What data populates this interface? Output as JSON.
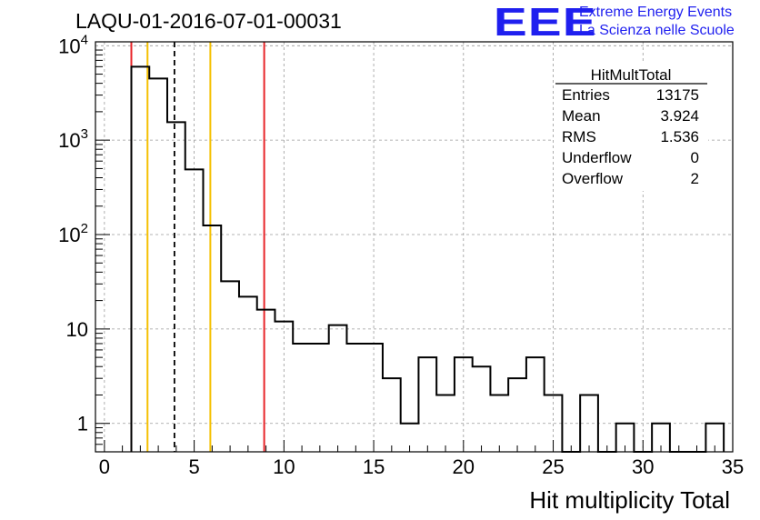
{
  "header": {
    "run_title": "LAQU-01-2016-07-01-00031",
    "logo_text": "EEE",
    "logo_line1": "Extreme Energy Events",
    "logo_line2": "La Scienza nelle Scuole"
  },
  "stats_box": {
    "title": "HitMultTotal",
    "rows": [
      {
        "label": "Entries",
        "value": "13175"
      },
      {
        "label": "Mean",
        "value": "3.924"
      },
      {
        "label": "RMS",
        "value": "1.536"
      },
      {
        "label": "Underflow",
        "value": "0"
      },
      {
        "label": "Overflow",
        "value": "2"
      }
    ]
  },
  "chart_data": {
    "type": "histogram",
    "scale": "log",
    "title": "LAQU-01-2016-07-01-00031",
    "xlabel": "Hit multiplicity Total",
    "ylabel": "",
    "xlim": [
      -0.5,
      35
    ],
    "ylim": [
      0.5,
      11000
    ],
    "grid": true,
    "bin_width": 1,
    "bins": [
      {
        "x": 2,
        "count": 6000
      },
      {
        "x": 3,
        "count": 4500
      },
      {
        "x": 4,
        "count": 1550
      },
      {
        "x": 5,
        "count": 490
      },
      {
        "x": 6,
        "count": 125
      },
      {
        "x": 7,
        "count": 32
      },
      {
        "x": 8,
        "count": 22
      },
      {
        "x": 9,
        "count": 16
      },
      {
        "x": 10,
        "count": 12
      },
      {
        "x": 11,
        "count": 7
      },
      {
        "x": 12,
        "count": 7
      },
      {
        "x": 13,
        "count": 11
      },
      {
        "x": 14,
        "count": 7
      },
      {
        "x": 15,
        "count": 7
      },
      {
        "x": 16,
        "count": 3
      },
      {
        "x": 17,
        "count": 1
      },
      {
        "x": 18,
        "count": 5
      },
      {
        "x": 19,
        "count": 2
      },
      {
        "x": 20,
        "count": 5
      },
      {
        "x": 21,
        "count": 4
      },
      {
        "x": 22,
        "count": 2
      },
      {
        "x": 23,
        "count": 3
      },
      {
        "x": 24,
        "count": 5
      },
      {
        "x": 25,
        "count": 2
      },
      {
        "x": 26,
        "count": 0
      },
      {
        "x": 27,
        "count": 2
      },
      {
        "x": 28,
        "count": 0
      },
      {
        "x": 29,
        "count": 1
      },
      {
        "x": 30,
        "count": 0
      },
      {
        "x": 31,
        "count": 1
      },
      {
        "x": 32,
        "count": 0
      },
      {
        "x": 33,
        "count": 0
      },
      {
        "x": 34,
        "count": 1
      }
    ],
    "x_ticks": [
      0,
      5,
      10,
      15,
      20,
      25,
      30,
      35
    ],
    "y_ticks": [
      {
        "value": 1,
        "label": "1"
      },
      {
        "value": 10,
        "label": "10"
      },
      {
        "value": 100,
        "label": "10",
        "exp": "2"
      },
      {
        "value": 1000,
        "label": "10",
        "exp": "3"
      },
      {
        "value": 10000,
        "label": "10",
        "exp": "4"
      }
    ],
    "reference_lines": [
      {
        "x": 1.5,
        "color": "#e8262a",
        "style": "solid"
      },
      {
        "x": 2.4,
        "color": "#f5c000",
        "style": "solid"
      },
      {
        "x": 3.9,
        "color": "#000000",
        "style": "dashed"
      },
      {
        "x": 5.9,
        "color": "#f5c000",
        "style": "solid"
      },
      {
        "x": 8.9,
        "color": "#e8262a",
        "style": "solid"
      }
    ]
  },
  "colors": {
    "histogram": "#000000",
    "grid": "#9a9a9a",
    "logo": "#1f1fef"
  }
}
